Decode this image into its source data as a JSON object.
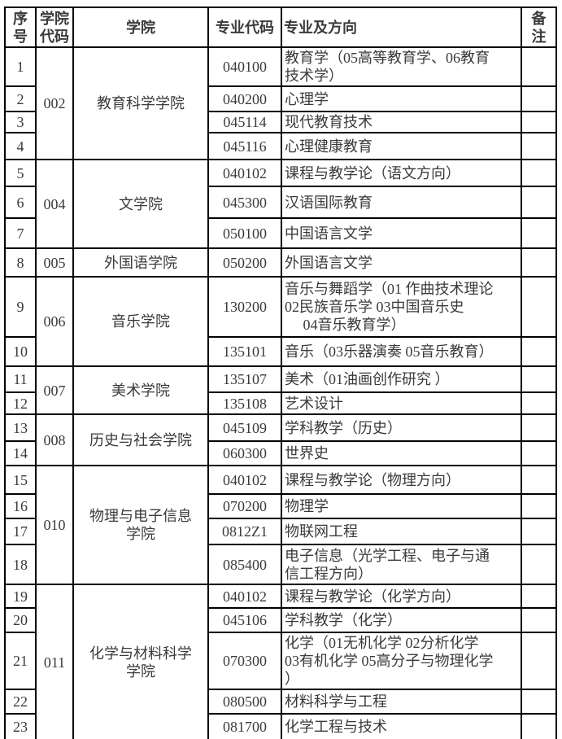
{
  "page": {
    "background_color": "#ffffff",
    "text_color": "#3a3a3a",
    "border_color": "#000000"
  },
  "table": {
    "headers": [
      "序\n号",
      "学院\n代码",
      "学院",
      "专业代码",
      "专业及方向",
      "备\n注"
    ],
    "groups": [
      {
        "college_code": "002",
        "college_name": "教育科学学院",
        "rows": [
          {
            "no": "1",
            "major_code": "040100",
            "major": "教育学（05高等教育学、06教育\n技术学）",
            "note": ""
          },
          {
            "no": "2",
            "major_code": "040200",
            "major": "心理学",
            "note": ""
          },
          {
            "no": "3",
            "major_code": "045114",
            "major": "现代教育技术",
            "note": ""
          },
          {
            "no": "4",
            "major_code": "045116",
            "major": "心理健康教育",
            "note": ""
          }
        ]
      },
      {
        "college_code": "004",
        "college_name": "文学院",
        "rows": [
          {
            "no": "5",
            "major_code": "040102",
            "major": "课程与教学论（语文方向）",
            "note": ""
          },
          {
            "no": "6",
            "major_code": "045300",
            "major": "汉语国际教育",
            "note": ""
          },
          {
            "no": "7",
            "major_code": "050100",
            "major": "中国语言文学",
            "note": ""
          }
        ]
      },
      {
        "college_code": "005",
        "college_name": "外国语学院",
        "rows": [
          {
            "no": "8",
            "major_code": "050200",
            "major": "外国语言文学",
            "note": ""
          }
        ]
      },
      {
        "college_code": "006",
        "college_name": "音乐学院",
        "rows": [
          {
            "no": "9",
            "major_code": "130200",
            "major": "音乐与舞蹈学（01 作曲技术理论\n02民族音乐学 03中国音乐史\n　 04音乐教育学）",
            "note": ""
          },
          {
            "no": "10",
            "major_code": "135101",
            "major": "音乐（03乐器演奏 05音乐教育）",
            "note": ""
          }
        ]
      },
      {
        "college_code": "007",
        "college_name": "美术学院",
        "rows": [
          {
            "no": "11",
            "major_code": "135107",
            "major": "美术（01油画创作研究 ）",
            "note": ""
          },
          {
            "no": "12",
            "major_code": "135108",
            "major": "艺术设计",
            "note": ""
          }
        ]
      },
      {
        "college_code": "008",
        "college_name": "历史与社会学院",
        "rows": [
          {
            "no": "13",
            "major_code": "045109",
            "major": "学科教学（历史）",
            "note": ""
          },
          {
            "no": "14",
            "major_code": "060300",
            "major": "世界史",
            "note": ""
          }
        ]
      },
      {
        "college_code": "010",
        "college_name": "物理与电子信息\n学院",
        "rows": [
          {
            "no": "15",
            "major_code": "040102",
            "major": "课程与教学论（物理方向）",
            "note": ""
          },
          {
            "no": "16",
            "major_code": "070200",
            "major": "物理学",
            "note": ""
          },
          {
            "no": "17",
            "major_code": "0812Z1",
            "major": "物联网工程",
            "note": ""
          },
          {
            "no": "18",
            "major_code": "085400",
            "major": "电子信息（光学工程、电子与通\n信工程方向）",
            "note": ""
          }
        ]
      },
      {
        "college_code": "011",
        "college_name": "化学与材料科学\n学院",
        "rows": [
          {
            "no": "19",
            "major_code": "040102",
            "major": "课程与教学论（化学方向）",
            "note": ""
          },
          {
            "no": "20",
            "major_code": "045106",
            "major": "学科教学（化学）",
            "note": ""
          },
          {
            "no": "21",
            "major_code": "070300",
            "major": "化学（01无机化学 02分析化学\n03有机化学 05高分子与物理化学\n）",
            "note": ""
          },
          {
            "no": "22",
            "major_code": "080500",
            "major": "材料科学与工程",
            "note": ""
          },
          {
            "no": "23",
            "major_code": "081700",
            "major": "化学工程与技术",
            "note": ""
          }
        ]
      }
    ],
    "partial_next_row_visible": true
  }
}
